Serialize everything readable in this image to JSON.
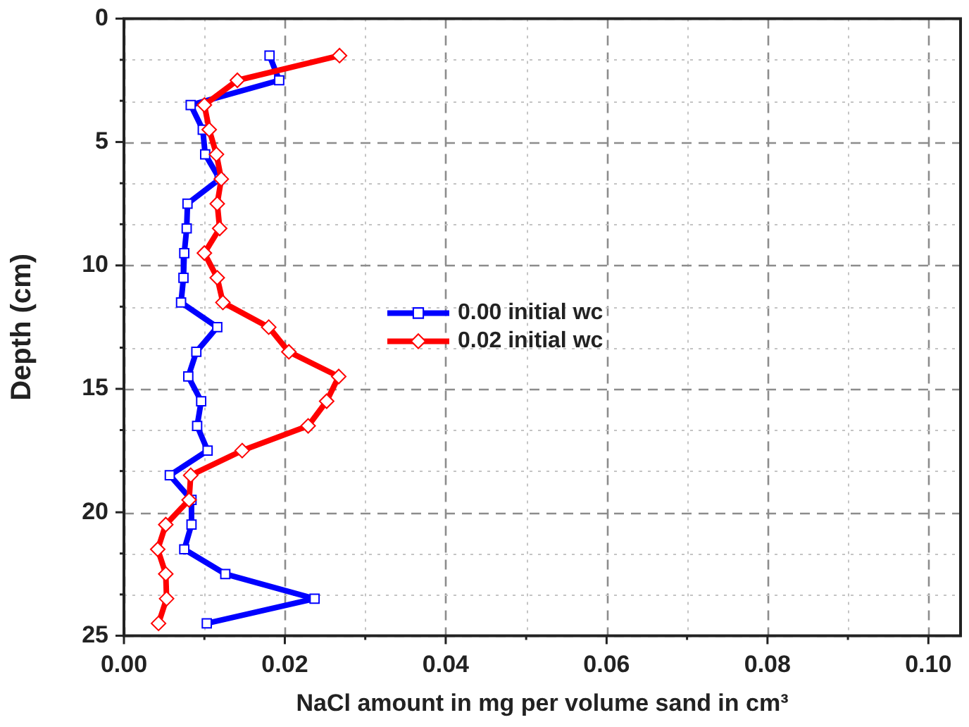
{
  "chart_data": {
    "type": "line",
    "xlabel": "NaCl amount in mg per volume sand in cm³",
    "ylabel": "Depth (cm)",
    "xlim": [
      0,
      0.104
    ],
    "xticks": [
      {
        "value": 0,
        "label": "0.00"
      },
      {
        "value": 0.01,
        "label": null
      },
      {
        "value": 0.02,
        "label": "0.02"
      },
      {
        "value": 0.03,
        "label": null
      },
      {
        "value": 0.04,
        "label": "0.04"
      },
      {
        "value": 0.05,
        "label": null
      },
      {
        "value": 0.06,
        "label": "0.06"
      },
      {
        "value": 0.07,
        "label": null
      },
      {
        "value": 0.08,
        "label": "0.08"
      },
      {
        "value": 0.09,
        "label": null
      },
      {
        "value": 0.1,
        "label": "0.10"
      }
    ],
    "ylim": [
      25,
      0
    ],
    "yticks": [
      0,
      {
        "value": 1.67,
        "label": null
      },
      {
        "value": 3.33,
        "label": null
      },
      5,
      {
        "value": 6.67,
        "label": null
      },
      {
        "value": 8.33,
        "label": null
      },
      10,
      {
        "value": 11.67,
        "label": null
      },
      {
        "value": 13.33,
        "label": null
      },
      15,
      {
        "value": 16.67,
        "label": null
      },
      {
        "value": 18.33,
        "label": null
      },
      20,
      {
        "value": 21.67,
        "label": null
      },
      {
        "value": 23.33,
        "label": null
      },
      25
    ],
    "grid": true,
    "legend": "center",
    "line_style": "solid",
    "series": [
      {
        "name": "0.00 initial wc",
        "color": "#0000ff",
        "marker": "square",
        "x": [
          0.0181,
          0.0193,
          0.0083,
          0.0098,
          0.0101,
          0.0119,
          0.0079,
          0.0078,
          0.0075,
          0.0074,
          0.0071,
          0.0116,
          0.009,
          0.008,
          0.0096,
          0.0091,
          0.0104,
          0.0057,
          0.0084,
          0.0084,
          0.0075,
          0.0126,
          0.0237,
          0.0103
        ],
        "values": [
          1.5,
          2.5,
          3.5,
          4.5,
          5.5,
          6.5,
          7.5,
          8.5,
          9.5,
          10.5,
          11.5,
          12.5,
          13.5,
          14.5,
          15.5,
          16.5,
          17.5,
          18.5,
          19.5,
          20.5,
          21.5,
          22.5,
          23.5,
          24.5
        ]
      },
      {
        "name": "0.02 initial wc",
        "color": "#ff0000",
        "marker": "diamond",
        "x": [
          0.0268,
          0.0141,
          0.01,
          0.0106,
          0.0115,
          0.0121,
          0.0116,
          0.0119,
          0.01,
          0.0116,
          0.0123,
          0.018,
          0.0205,
          0.0267,
          0.0252,
          0.0229,
          0.0147,
          0.0083,
          0.0081,
          0.0052,
          0.0042,
          0.0052,
          0.0053,
          0.0043
        ],
        "values": [
          1.5,
          2.5,
          3.5,
          4.5,
          5.5,
          6.5,
          7.5,
          8.5,
          9.5,
          10.5,
          11.5,
          12.5,
          13.5,
          14.5,
          15.5,
          16.5,
          17.5,
          18.5,
          19.5,
          20.5,
          21.5,
          22.5,
          23.5,
          24.5
        ]
      }
    ]
  }
}
